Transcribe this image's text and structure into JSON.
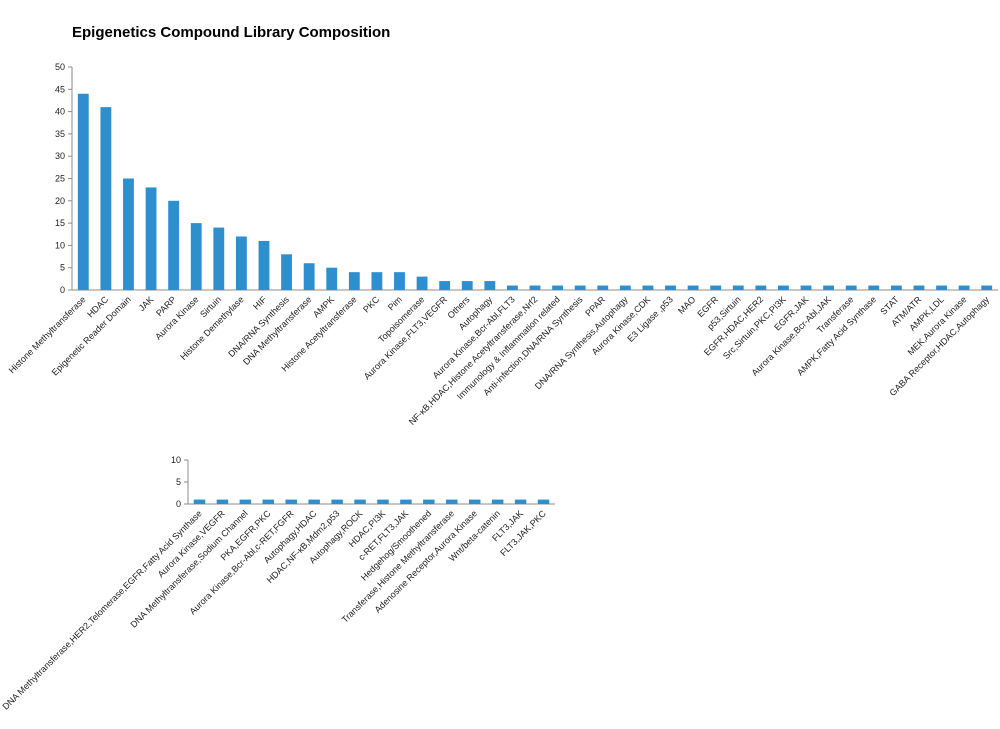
{
  "title": "Epigenetics Compound Library Composition",
  "colors": {
    "bar": "#2e8fcf",
    "axis": "#8c8c8c",
    "text": "#222222"
  },
  "chart_data": [
    {
      "type": "bar",
      "title": "Epigenetics Compound Library Composition",
      "xlabel": "",
      "ylabel": "",
      "ylim": [
        0,
        50
      ],
      "yticks": [
        0,
        5,
        10,
        15,
        20,
        25,
        30,
        35,
        40,
        45,
        50
      ],
      "grid": false,
      "legend": "none",
      "categories": [
        "Histone Methyltransferase",
        "HDAC",
        "Epigenetic Reader Domain",
        "JAK",
        "PARP",
        "Aurora Kinase",
        "Sirtuin",
        "Histone Demethylase",
        "HIF",
        "DNA/RNA Synthesis",
        "DNA Methyltransferase",
        "AMPK",
        "Histone Acetyltransferase",
        "PKC",
        "Pim",
        "Topoisomerase",
        "Aurora Kinase,FLT3,VEGFR",
        "Others",
        "Autophagy",
        "Aurora Kinase,Bcr-Abl,FLT3",
        "NF-κB,HDAC,Histone Acetyltransferase,Nrf2",
        "Immunology & Inflammation related",
        "Anti-infection,DNA/RNA Synthesis",
        "PPAR",
        "DNA/RNA Synthesis,Autophagy",
        "Aurora Kinase,CDK",
        "E3 Ligase ,p53",
        "MAO",
        "EGFR",
        "p53,Sirtuin",
        "EGFR,HDAC,HER2",
        "Src,Sirtuin,PKC,PI3K",
        "EGFR,JAK",
        "Aurora Kinase,Bcr-Abl,JAK",
        "Transferase",
        "AMPK,Fatty Acid Synthase",
        "STAT",
        "ATM/ATR",
        "AMPK,LDL",
        "MEK,Aurora Kinase",
        "GABA Receptor,HDAC,Autophagy"
      ],
      "values": [
        44,
        41,
        25,
        23,
        20,
        15,
        14,
        12,
        11,
        8,
        6,
        5,
        4,
        4,
        4,
        3,
        2,
        2,
        2,
        1,
        1,
        1,
        1,
        1,
        1,
        1,
        1,
        1,
        1,
        1,
        1,
        1,
        1,
        1,
        1,
        1,
        1,
        1,
        1,
        1,
        1
      ]
    },
    {
      "type": "bar",
      "title": "",
      "xlabel": "",
      "ylabel": "",
      "ylim": [
        0,
        10
      ],
      "yticks": [
        0,
        5,
        10
      ],
      "grid": false,
      "legend": "none",
      "categories": [
        "DNA Methyltransferase,HER2,Telomerase,EGFR,Fatty Acid Synthase",
        "Aurora Kinase,VEGFR",
        "DNA Methyltransferase,Sodium Channel",
        "PKA,EGFR,PKC",
        "Aurora Kinase,Bcr-Abl,c-RET,FGFR",
        "Autophagy,HDAC",
        "HDAC,NF-κB,Mdm2,p53",
        "Autophagy,ROCK",
        "HDAC,PI3K",
        "c-RET,FLT3,JAK",
        "Hedgehog/Smoothened",
        "Transferase,Histone Methyltransferase",
        "Adenosine Receptor,Aurora Kinase",
        "Wnt/beta-catenin",
        "FLT3,JAK",
        "FLT3,JAK,PKC"
      ],
      "values": [
        1,
        1,
        1,
        1,
        1,
        1,
        1,
        1,
        1,
        1,
        1,
        1,
        1,
        1,
        1,
        1
      ]
    }
  ]
}
